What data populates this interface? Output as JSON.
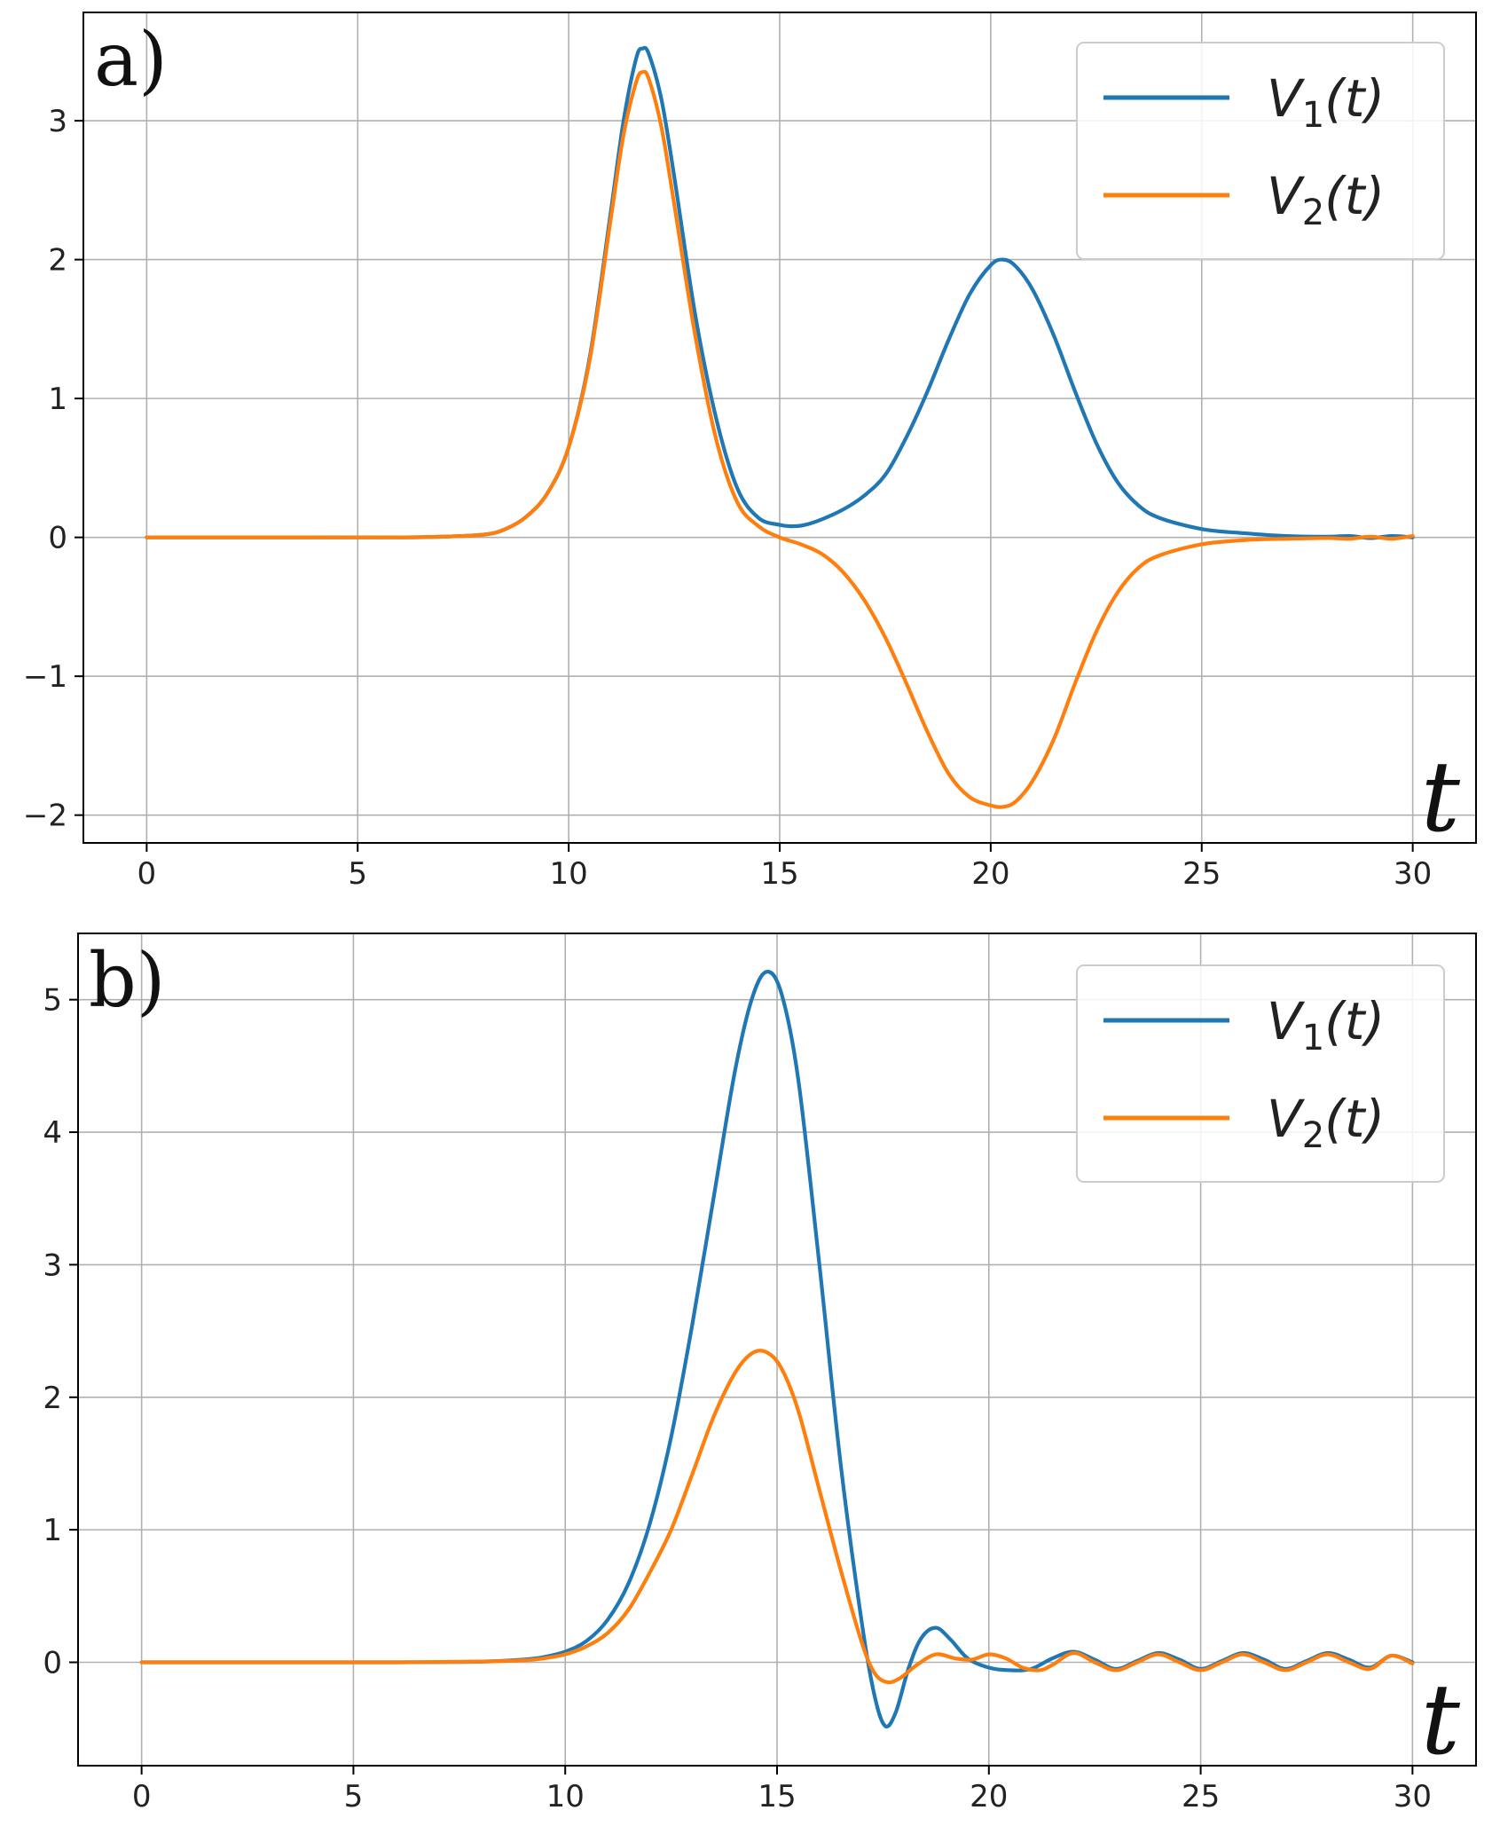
{
  "chart_data": [
    {
      "type": "line",
      "panel_label": "a)",
      "xlabel": "t",
      "ylabel": "",
      "xlim": [
        -1.5,
        31.5
      ],
      "ylim": [
        -2.2,
        3.78
      ],
      "xticks": [
        0,
        5,
        10,
        15,
        20,
        25,
        30
      ],
      "xtick_labels": [
        "0",
        "5",
        "10",
        "15",
        "20",
        "25",
        "30"
      ],
      "yticks": [
        -2,
        -1,
        0,
        1,
        2,
        3
      ],
      "ytick_labels": [
        "−2",
        "−1",
        "0",
        "1",
        "2",
        "3"
      ],
      "grid": true,
      "legend": "top-right",
      "series": [
        {
          "name": "V1(t)",
          "name_main": "V",
          "name_sub": "1",
          "name_tail": "(t)",
          "color": "#1f77b4",
          "x": [
            0,
            2,
            4,
            6,
            7,
            8,
            8.5,
            9,
            9.5,
            10,
            10.5,
            11,
            11.3,
            11.6,
            11.75,
            11.9,
            12.2,
            12.5,
            13,
            13.5,
            14,
            14.5,
            15,
            15.3,
            15.6,
            16,
            16.5,
            17,
            17.5,
            18,
            18.5,
            19,
            19.5,
            20,
            20.3,
            20.6,
            21,
            21.5,
            22,
            22.5,
            23,
            23.5,
            24,
            25,
            26,
            27,
            28,
            28.5,
            29,
            29.5,
            30
          ],
          "y": [
            0,
            0,
            0,
            0,
            0.005,
            0.02,
            0.06,
            0.15,
            0.32,
            0.65,
            1.3,
            2.35,
            3.0,
            3.45,
            3.52,
            3.48,
            3.15,
            2.6,
            1.6,
            0.85,
            0.35,
            0.14,
            0.09,
            0.08,
            0.09,
            0.13,
            0.2,
            0.3,
            0.45,
            0.72,
            1.05,
            1.42,
            1.75,
            1.96,
            2.0,
            1.95,
            1.78,
            1.45,
            1.05,
            0.68,
            0.4,
            0.23,
            0.14,
            0.06,
            0.03,
            0.01,
            0.005,
            0.01,
            -0.005,
            0.01,
            0
          ]
        },
        {
          "name": "V2(t)",
          "name_main": "V",
          "name_sub": "2",
          "name_tail": "(t)",
          "color": "#ff7f0e",
          "x": [
            0,
            2,
            4,
            6,
            7,
            8,
            8.5,
            9,
            9.5,
            10,
            10.5,
            11,
            11.3,
            11.6,
            11.75,
            11.9,
            12.2,
            12.5,
            13,
            13.5,
            14,
            14.5,
            15,
            15.5,
            16,
            16.5,
            17,
            17.5,
            18,
            18.5,
            19,
            19.5,
            20,
            20.3,
            20.6,
            21,
            21.5,
            22,
            22.5,
            23,
            23.5,
            24,
            25,
            26,
            27,
            28,
            28.5,
            29,
            29.5,
            30
          ],
          "y": [
            0,
            0,
            0,
            0,
            0.005,
            0.02,
            0.06,
            0.15,
            0.32,
            0.65,
            1.28,
            2.3,
            2.9,
            3.28,
            3.35,
            3.3,
            2.95,
            2.4,
            1.45,
            0.7,
            0.25,
            0.08,
            0.0,
            -0.05,
            -0.12,
            -0.25,
            -0.45,
            -0.72,
            -1.05,
            -1.4,
            -1.7,
            -1.87,
            -1.93,
            -1.94,
            -1.9,
            -1.75,
            -1.45,
            -1.05,
            -0.68,
            -0.4,
            -0.22,
            -0.13,
            -0.05,
            -0.02,
            -0.01,
            -0.005,
            -0.01,
            0.005,
            -0.01,
            0.01
          ]
        }
      ]
    },
    {
      "type": "line",
      "panel_label": "b)",
      "xlabel": "t",
      "ylabel": "",
      "xlim": [
        -1.5,
        31.5
      ],
      "ylim": [
        -0.78,
        5.5
      ],
      "xticks": [
        0,
        5,
        10,
        15,
        20,
        25,
        30
      ],
      "xtick_labels": [
        "0",
        "5",
        "10",
        "15",
        "20",
        "25",
        "30"
      ],
      "yticks": [
        0,
        1,
        2,
        3,
        4,
        5
      ],
      "ytick_labels": [
        "0",
        "1",
        "2",
        "3",
        "4",
        "5"
      ],
      "grid": true,
      "legend": "top-right",
      "series": [
        {
          "name": "V1(t)",
          "name_main": "V",
          "name_sub": "1",
          "name_tail": "(t)",
          "color": "#1f77b4",
          "x": [
            0,
            3,
            6,
            8,
            9,
            9.5,
            10,
            10.5,
            11,
            11.5,
            12,
            12.5,
            13,
            13.5,
            14,
            14.4,
            14.75,
            15.1,
            15.5,
            16,
            16.5,
            17,
            17.3,
            17.55,
            17.8,
            18.1,
            18.4,
            18.75,
            19.1,
            19.5,
            20,
            20.5,
            21,
            21.5,
            22,
            22.5,
            23,
            23.5,
            24,
            24.5,
            25,
            25.5,
            26,
            26.5,
            27,
            27.5,
            28,
            28.5,
            29,
            29.5,
            30
          ],
          "y": [
            0,
            0,
            0,
            0.005,
            0.02,
            0.04,
            0.08,
            0.16,
            0.32,
            0.6,
            1.05,
            1.7,
            2.55,
            3.5,
            4.45,
            5.0,
            5.21,
            5.05,
            4.4,
            3.0,
            1.5,
            0.3,
            -0.25,
            -0.48,
            -0.38,
            -0.05,
            0.18,
            0.26,
            0.17,
            0.03,
            -0.04,
            -0.06,
            -0.05,
            0.03,
            0.08,
            0.02,
            -0.05,
            0.01,
            0.07,
            0.02,
            -0.05,
            0.01,
            0.07,
            0.02,
            -0.05,
            0.01,
            0.07,
            0.02,
            -0.04,
            0.05,
            0.0
          ]
        },
        {
          "name": "V2(t)",
          "name_main": "V",
          "name_sub": "2",
          "name_tail": "(t)",
          "color": "#ff7f0e",
          "x": [
            0,
            3,
            6,
            8,
            9,
            9.5,
            10,
            10.5,
            11,
            11.5,
            12,
            12.5,
            13,
            13.5,
            14,
            14.4,
            14.75,
            15.1,
            15.5,
            16,
            16.5,
            17,
            17.3,
            17.6,
            17.9,
            18.3,
            18.75,
            19.2,
            19.6,
            20,
            20.4,
            20.8,
            21.2,
            21.5,
            22,
            22.5,
            23,
            23.5,
            24,
            24.5,
            25,
            25.5,
            26,
            26.5,
            27,
            27.5,
            28,
            28.5,
            29,
            29.5,
            30
          ],
          "y": [
            0,
            0,
            0,
            0.005,
            0.015,
            0.03,
            0.06,
            0.12,
            0.22,
            0.4,
            0.68,
            1.0,
            1.42,
            1.85,
            2.18,
            2.33,
            2.34,
            2.22,
            1.9,
            1.3,
            0.7,
            0.15,
            -0.08,
            -0.15,
            -0.12,
            -0.02,
            0.06,
            0.03,
            0.02,
            0.06,
            0.03,
            -0.04,
            -0.06,
            -0.02,
            0.07,
            0.0,
            -0.06,
            0.0,
            0.06,
            0.0,
            -0.06,
            0.0,
            0.06,
            0.0,
            -0.06,
            0.0,
            0.06,
            0.0,
            -0.05,
            0.05,
            -0.01
          ]
        }
      ]
    }
  ]
}
